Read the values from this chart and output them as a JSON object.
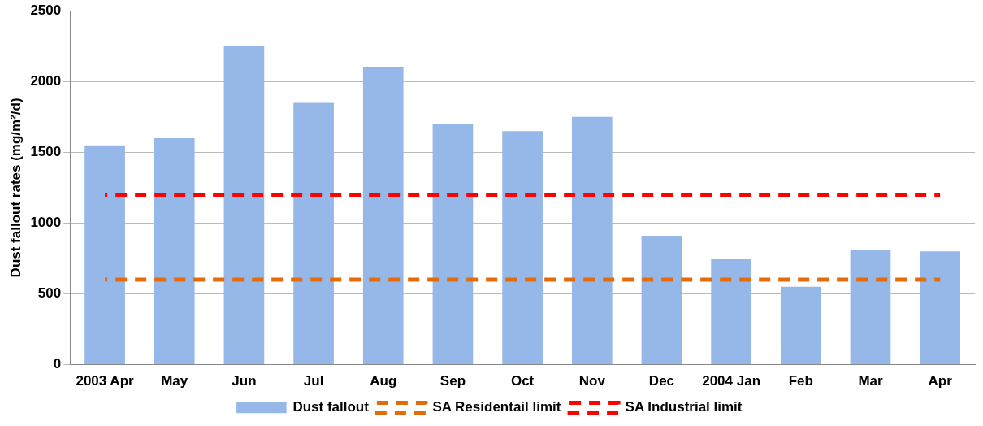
{
  "chart_data": {
    "type": "bar",
    "ylabel": "Dust fallout rates (mg/m²/d)",
    "categories": [
      "2003 Apr",
      "May",
      "Jun",
      "Jul",
      "Aug",
      "Sep",
      "Oct",
      "Nov",
      "Dec",
      "2004 Jan",
      "Feb",
      "Mar",
      "Apr"
    ],
    "series": [
      {
        "name": "Dust fallout",
        "color": "#95b8e8",
        "values": [
          1550,
          1600,
          2250,
          1850,
          2100,
          1700,
          1650,
          1750,
          910,
          750,
          550,
          810,
          800
        ]
      },
      {
        "name": "SA Residentail limit",
        "type": "line",
        "color": "#e36c09",
        "line_style": "dashed",
        "values": [
          600,
          600,
          600,
          600,
          600,
          600,
          600,
          600,
          600,
          600,
          600,
          600,
          600
        ]
      },
      {
        "name": "SA Industrial limit",
        "type": "line",
        "color": "#ff0000",
        "line_style": "dashed",
        "values": [
          1200,
          1200,
          1200,
          1200,
          1200,
          1200,
          1200,
          1200,
          1200,
          1200,
          1200,
          1200,
          1200
        ]
      }
    ],
    "ylim": [
      0,
      2500
    ],
    "yticks": [
      0,
      500,
      1000,
      1500,
      2000,
      2500
    ],
    "grid": "y",
    "legend": "bottom",
    "marker": "none"
  }
}
